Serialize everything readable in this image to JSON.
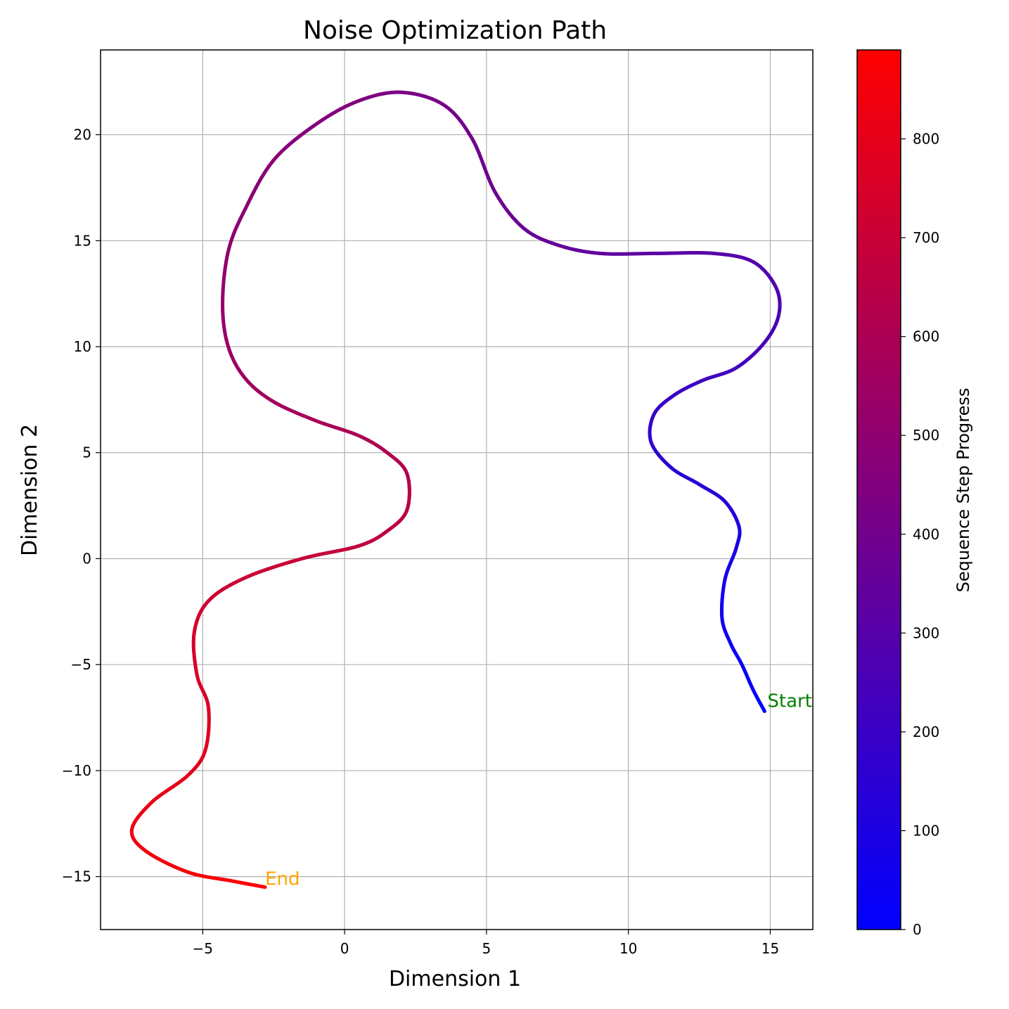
{
  "chart_data": {
    "type": "line",
    "title": "Noise Optimization Path",
    "xlabel": "Dimension 1",
    "ylabel": "Dimension 2",
    "xlim": [
      -8.6,
      16.5
    ],
    "ylim": [
      -17.5,
      24
    ],
    "xticks": [
      -5,
      0,
      5,
      10,
      15
    ],
    "yticks": [
      -15,
      -10,
      -5,
      0,
      5,
      10,
      15,
      20
    ],
    "xtick_labels": [
      "−5",
      "0",
      "5",
      "10",
      "15"
    ],
    "ytick_labels": [
      "−15",
      "−10",
      "−5",
      "0",
      "5",
      "10",
      "15",
      "20"
    ],
    "grid": true,
    "series": [
      {
        "name": "path",
        "color_by": "sequence step",
        "x": [
          14.8,
          14.4,
          14.0,
          13.6,
          13.3,
          13.4,
          13.8,
          13.9,
          13.4,
          12.5,
          11.5,
          10.8,
          10.9,
          11.6,
          12.6,
          13.8,
          14.8,
          15.3,
          15.2,
          14.4,
          13.0,
          11.0,
          9.0,
          7.5,
          6.3,
          5.3,
          4.5,
          3.5,
          2.0,
          0.5,
          -1.0,
          -2.5,
          -3.5,
          -4.1,
          -4.3,
          -4.1,
          -3.5,
          -2.5,
          -1.0,
          0.5,
          1.5,
          2.2,
          2.2,
          1.5,
          0.5,
          -1.5,
          -3.5,
          -4.8,
          -5.3,
          -5.2,
          -4.8,
          -4.9,
          -5.5,
          -6.8,
          -7.5,
          -7.0,
          -5.5,
          -4.0,
          -2.8
        ],
        "y": [
          -7.2,
          -6.2,
          -5.0,
          -4.0,
          -2.8,
          -1.0,
          0.5,
          1.5,
          2.7,
          3.5,
          4.3,
          5.5,
          6.8,
          7.7,
          8.4,
          9.0,
          10.2,
          11.5,
          12.8,
          14.0,
          14.4,
          14.4,
          14.4,
          14.8,
          15.6,
          17.3,
          19.8,
          21.4,
          22.0,
          21.6,
          20.5,
          18.8,
          16.5,
          14.5,
          12.0,
          10.0,
          8.5,
          7.4,
          6.5,
          5.8,
          5.0,
          4.0,
          2.3,
          1.3,
          0.6,
          0.0,
          -0.9,
          -2.0,
          -3.5,
          -5.5,
          -7.0,
          -9.0,
          -10.2,
          -11.5,
          -12.8,
          -13.8,
          -14.8,
          -15.2,
          -15.5
        ]
      }
    ],
    "annotations": [
      {
        "text": "Start",
        "x": 14.9,
        "y": -7.0,
        "color": "#008000"
      },
      {
        "text": "End",
        "x": -2.8,
        "y": -15.4,
        "color": "#ffa500"
      }
    ],
    "colorbar": {
      "label": "Sequence Step Progress",
      "min": 0,
      "max": 890,
      "ticks": [
        0,
        100,
        200,
        300,
        400,
        500,
        600,
        700,
        800
      ],
      "tick_labels": [
        "0",
        "100",
        "200",
        "300",
        "400",
        "500",
        "600",
        "700",
        "800"
      ],
      "colormap": [
        "#0000ff",
        "#ff0000"
      ]
    }
  }
}
